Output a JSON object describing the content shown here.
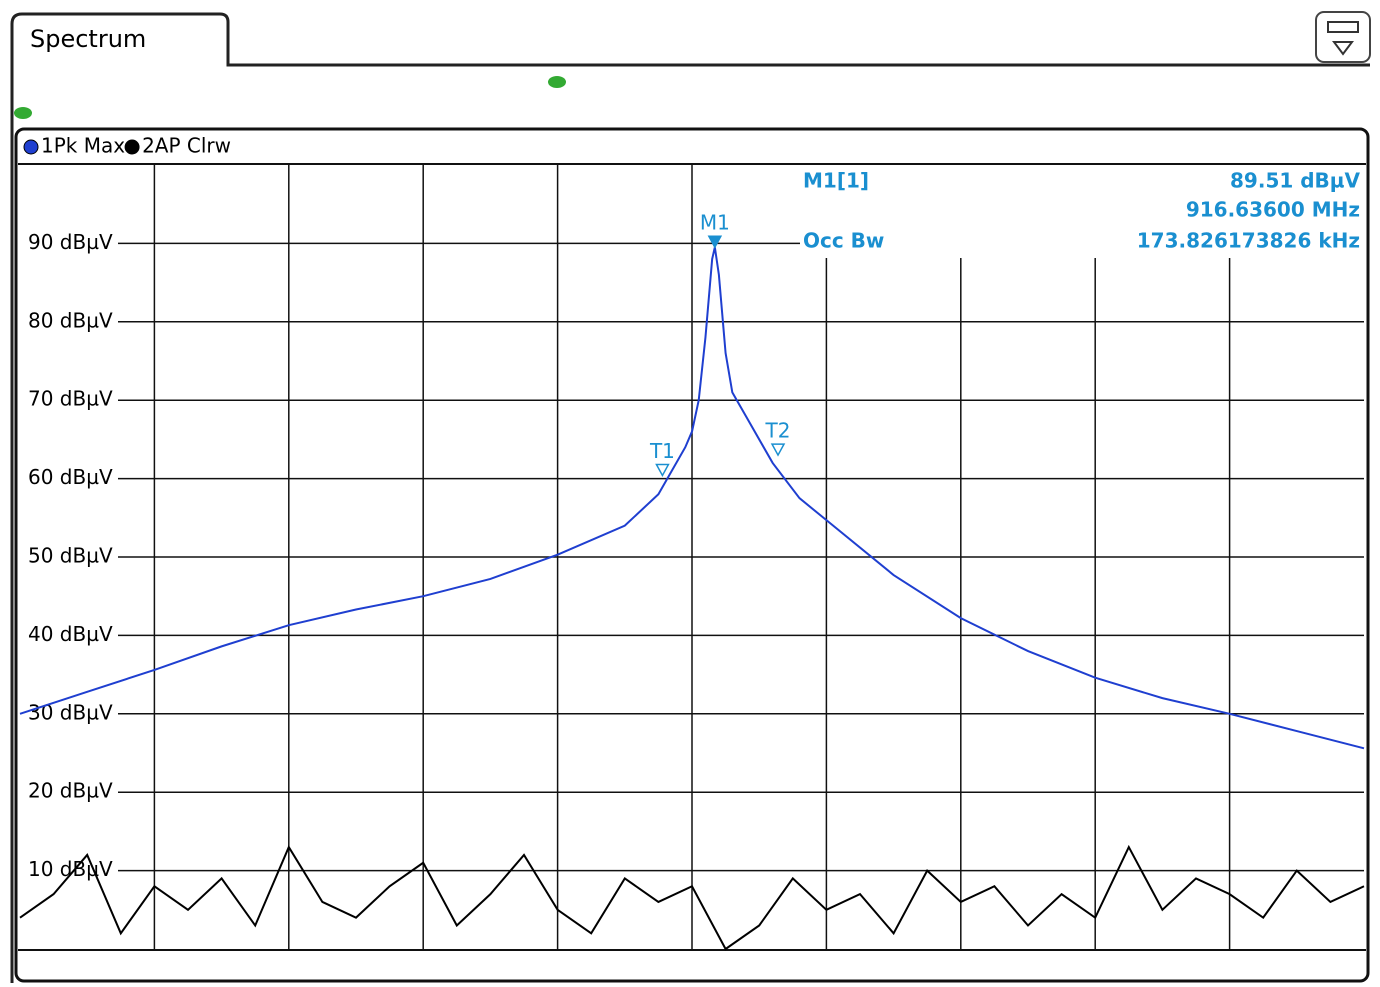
{
  "tab_title": "Spectrum",
  "chart_data": {
    "type": "line",
    "xlim": [
      0,
      10
    ],
    "ylim": [
      0,
      100
    ],
    "yticks": [
      {
        "value": 10,
        "label": "10 dBµV"
      },
      {
        "value": 20,
        "label": "20 dBµV"
      },
      {
        "value": 30,
        "label": "30 dBµV"
      },
      {
        "value": 40,
        "label": "40 dBµV"
      },
      {
        "value": 50,
        "label": "50 dBµV"
      },
      {
        "value": 60,
        "label": "60 dBµV"
      },
      {
        "value": 70,
        "label": "70 dBµV"
      },
      {
        "value": 80,
        "label": "80 dBµV"
      },
      {
        "value": 90,
        "label": "90 dBµV"
      }
    ],
    "grid": true,
    "series": [
      {
        "name": "1Pk Max",
        "color": "#1f3fd0",
        "x": [
          0,
          0.5,
          1,
          1.5,
          2,
          2.5,
          3,
          3.5,
          4,
          4.5,
          4.75,
          4.95,
          5,
          5.05,
          5.1,
          5.15,
          5.17,
          5.2,
          5.25,
          5.3,
          5.4,
          5.6,
          5.8,
          6,
          6.5,
          7,
          7.5,
          8,
          8.5,
          9,
          9.5,
          10
        ],
        "values": [
          30,
          32.8,
          35.6,
          38.6,
          41.3,
          43.3,
          45,
          47.2,
          50.3,
          54,
          58,
          64,
          66,
          70,
          78,
          88,
          89.51,
          86,
          76,
          71,
          68,
          62,
          57.5,
          54.7,
          47.7,
          42.2,
          38,
          34.6,
          32,
          30,
          27.8,
          25.6
        ]
      },
      {
        "name": "2AP Clrw",
        "color": "#000000",
        "x": [
          0,
          0.25,
          0.5,
          0.75,
          1,
          1.25,
          1.5,
          1.75,
          2,
          2.25,
          2.5,
          2.75,
          3,
          3.25,
          3.5,
          3.75,
          4,
          4.25,
          4.5,
          4.75,
          5,
          5.25,
          5.5,
          5.75,
          6,
          6.25,
          6.5,
          6.75,
          7,
          7.25,
          7.5,
          7.75,
          8,
          8.25,
          8.5,
          8.75,
          9,
          9.25,
          9.5,
          9.75,
          10
        ],
        "values": [
          4,
          7,
          12,
          2,
          8,
          5,
          9,
          3,
          13,
          6,
          4,
          8,
          11,
          3,
          7,
          12,
          5,
          2,
          9,
          6,
          8,
          0,
          3,
          9,
          5,
          7,
          2,
          10,
          6,
          8,
          3,
          7,
          4,
          13,
          5,
          9,
          7,
          4,
          10,
          6,
          8
        ]
      }
    ],
    "markers": [
      {
        "label": "M1",
        "x": 5.17,
        "y": 89.51,
        "filled": true
      },
      {
        "label": "T1",
        "x": 4.78,
        "y": 60.4,
        "filled": false
      },
      {
        "label": "T2",
        "x": 5.64,
        "y": 63,
        "filled": false
      }
    ],
    "marker_info": {
      "name": "M1[1]",
      "level": "89.51 dBµV",
      "frequency": "916.63600 MHz",
      "occ_bw_label": "Occ Bw",
      "occ_bw": "173.826173826 kHz"
    }
  }
}
